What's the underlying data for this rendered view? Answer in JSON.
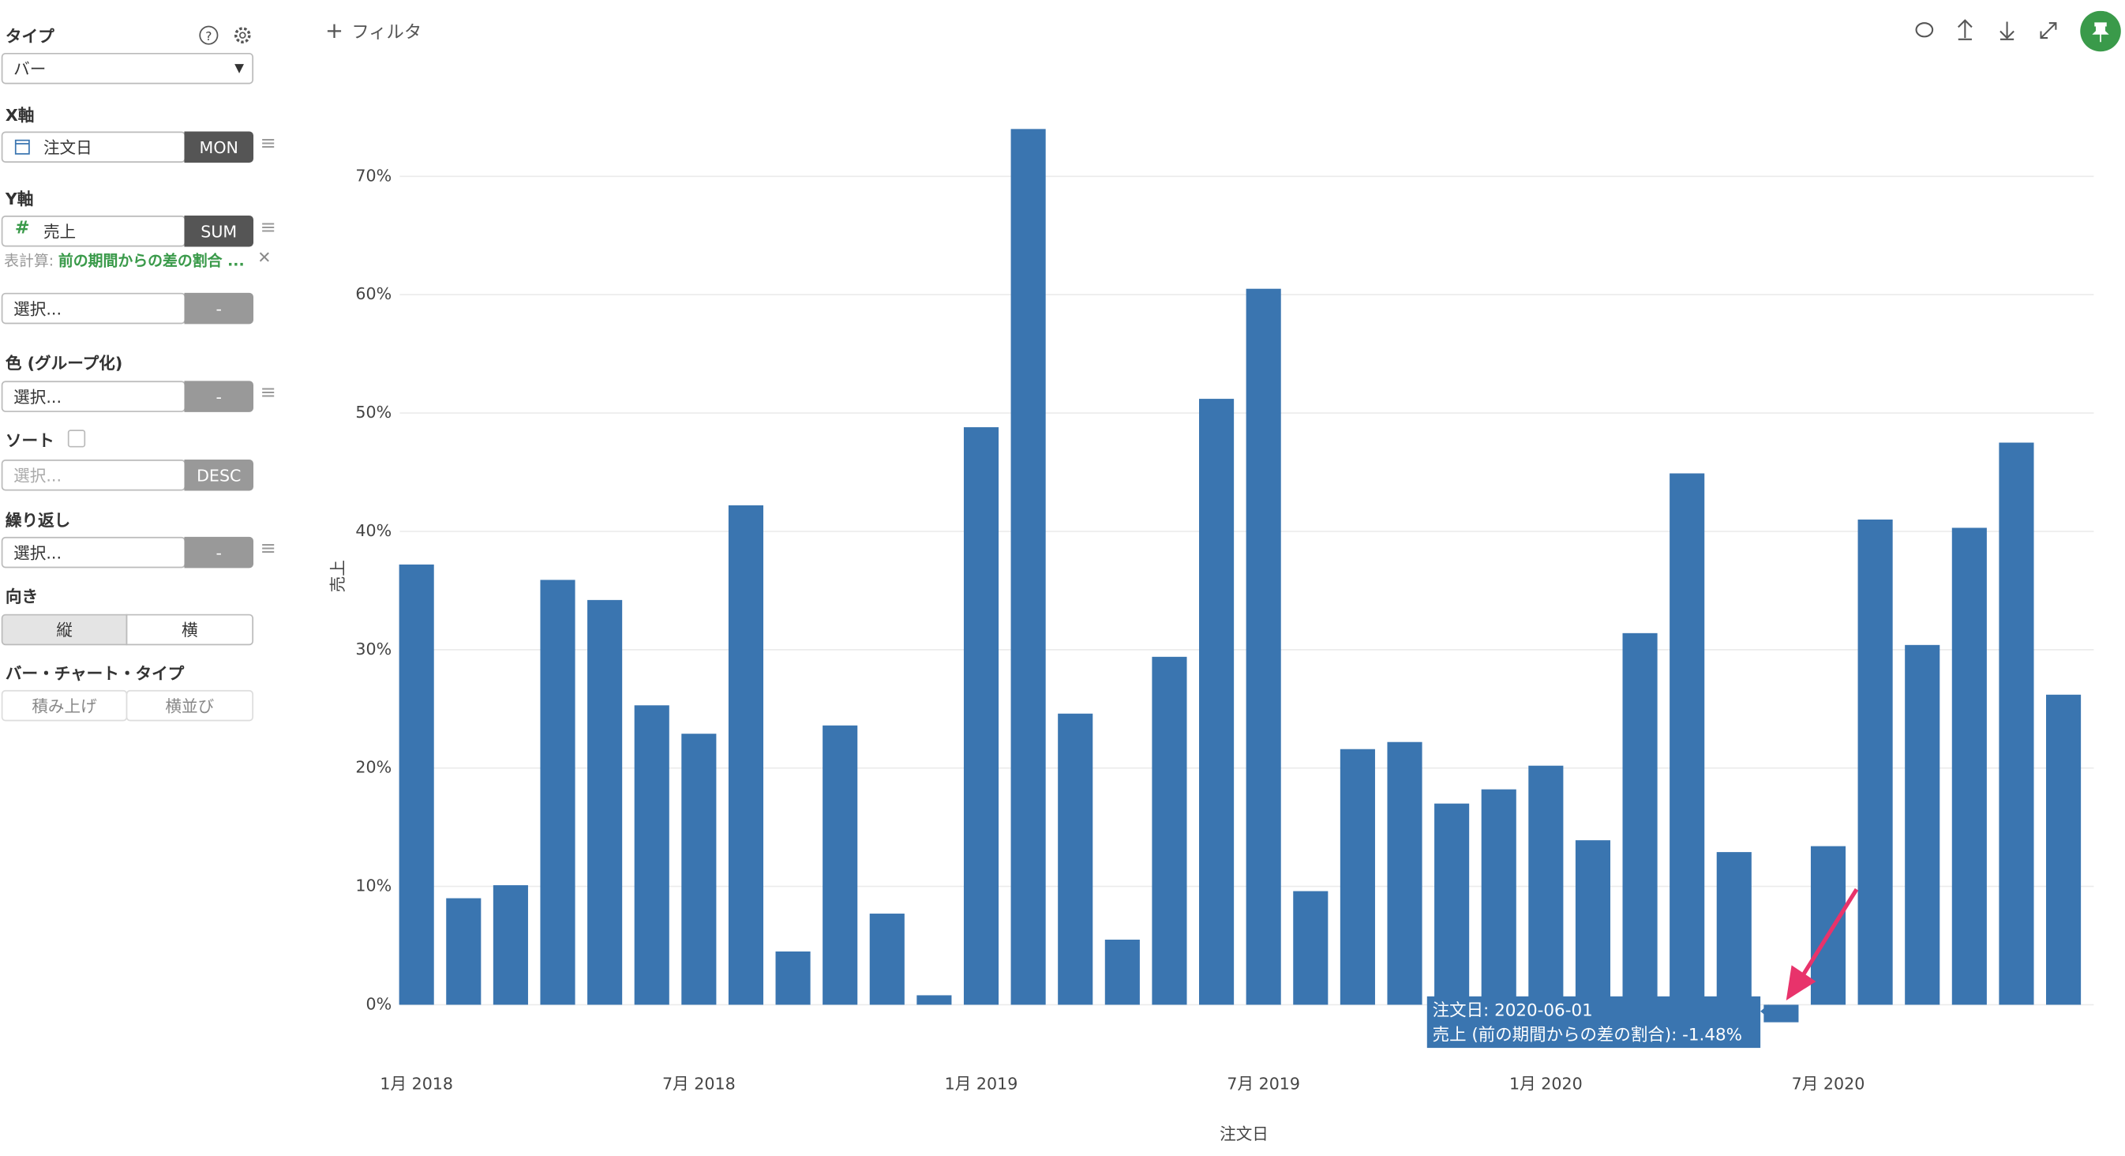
{
  "sidebar": {
    "type_label": "タイプ",
    "type_value": "バー",
    "x_axis_label": "X軸",
    "x_field": "注文日",
    "x_agg": "MON",
    "y_axis_label": "Y軸",
    "y_field": "売上",
    "y_agg": "SUM",
    "calc_prefix": "表計算:",
    "calc_value": "前の期間からの差の割合 ...",
    "select1": "選択...",
    "select1_btn": "-",
    "color_label": "色 (グループ化)",
    "color_select": "選択...",
    "color_btn": "-",
    "sort_label": "ソート",
    "sort_select": "選択...",
    "sort_btn": "DESC",
    "repeat_label": "繰り返し",
    "repeat_select": "選択...",
    "repeat_btn": "-",
    "orientation_label": "向き",
    "orientation_options": [
      "縦",
      "横"
    ],
    "bar_type_label": "バー・チャート・タイプ",
    "bar_type_options": [
      "積み上げ",
      "横並び"
    ]
  },
  "toolbar": {
    "filter": "フィルタ"
  },
  "chart_data": {
    "type": "bar",
    "x_label": "注文日",
    "y_label": "売上",
    "color": "#3a75b0",
    "categories": [
      "1月 2018",
      null,
      null,
      null,
      null,
      null,
      "7月 2018",
      null,
      null,
      null,
      null,
      null,
      "1月 2019",
      null,
      null,
      null,
      null,
      null,
      "7月 2019",
      null,
      null,
      null,
      null,
      null,
      "1月 2020",
      null,
      null,
      null,
      null,
      null,
      "7月 2020",
      null,
      null,
      null,
      null,
      null
    ],
    "values": [
      37.2,
      9.0,
      10.1,
      35.9,
      34.2,
      25.3,
      22.9,
      42.2,
      4.5,
      23.6,
      7.7,
      0.8,
      48.8,
      74.0,
      24.6,
      5.5,
      29.4,
      51.2,
      60.5,
      9.6,
      21.6,
      22.2,
      17.0,
      18.2,
      20.2,
      13.9,
      31.4,
      44.9,
      12.9,
      -1.48,
      13.4,
      41.0,
      30.4,
      40.3,
      47.5,
      26.2
    ],
    "ylim": [
      -2.5,
      76
    ],
    "yticks": [
      {
        "value": 0,
        "label": "0%"
      },
      {
        "value": 10,
        "label": "10%"
      },
      {
        "value": 20,
        "label": "20%"
      },
      {
        "value": 30,
        "label": "30%"
      },
      {
        "value": 40,
        "label": "40%"
      },
      {
        "value": 50,
        "label": "50%"
      },
      {
        "value": 60,
        "label": "60%"
      },
      {
        "value": 70,
        "label": "70%"
      }
    ],
    "grid": true,
    "tooltip": {
      "lines": [
        "注文日: 2020-06-01",
        "売上 (前の期間からの差の割合): -1.48%"
      ]
    }
  }
}
